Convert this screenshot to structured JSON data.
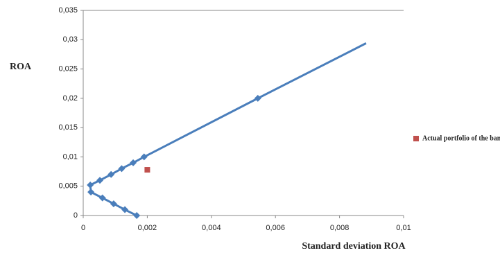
{
  "chart_data": {
    "type": "scatter",
    "x_label": "Standard deviation ROA",
    "y_label": "ROA",
    "series": [
      {
        "name": null,
        "color": "#4a7ebb",
        "line": true,
        "x": [
          0.00167,
          0.0013,
          0.00095,
          0.0006,
          0.00024,
          0.00022,
          0.00052,
          0.00087,
          0.0012,
          0.00156,
          0.0019,
          0.00545,
          0.00883
        ],
        "values": [
          0,
          0.001,
          0.002,
          0.003,
          0.004,
          0.0052,
          0.006,
          0.007,
          0.008,
          0.009,
          0.01,
          0.02,
          0.0294
        ]
      },
      {
        "name": "Actual portfolio of the bank",
        "color": "#c0504d",
        "line": false,
        "x": [
          0.002
        ],
        "values": [
          0.0078
        ]
      }
    ],
    "xlim": [
      0,
      0.01
    ],
    "xticks": [
      0,
      {
        "value": 0.002,
        "label": "0,002"
      },
      {
        "value": 0.004,
        "label": "0,004"
      },
      {
        "value": 0.006,
        "label": "0,006"
      },
      {
        "value": 0.008,
        "label": "0,008"
      },
      {
        "value": 0.01,
        "label": "0,01"
      }
    ],
    "ylim": [
      0,
      0.035
    ],
    "yticks": [
      0,
      {
        "value": 0.005,
        "label": "0,005"
      },
      {
        "value": 0.01,
        "label": "0,01"
      },
      {
        "value": 0.015,
        "label": "0,015"
      },
      {
        "value": 0.02,
        "label": "0,02"
      },
      {
        "value": 0.025,
        "label": "0,025"
      },
      {
        "value": 0.03,
        "label": "0,03"
      },
      {
        "value": 0.035,
        "label": "0,035"
      }
    ],
    "legend": "right"
  }
}
